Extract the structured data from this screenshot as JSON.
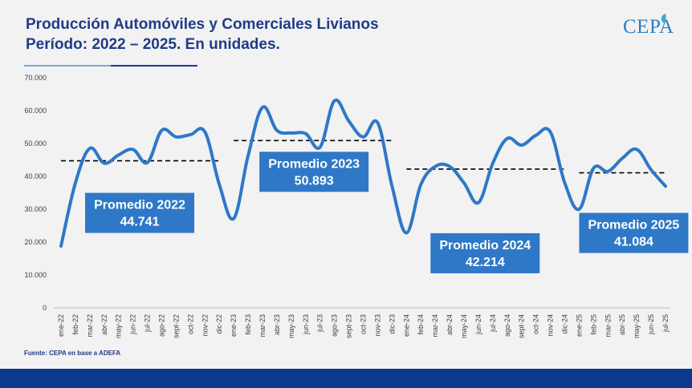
{
  "header": {
    "title_line1": "Producción Automóviles y Comerciales Livianos",
    "title_line2": "Período: 2022 – 2025. En unidades.",
    "logo_text": "CEPA"
  },
  "footer": {
    "source": "Fuente: CEPA en base a ADEFA"
  },
  "colors": {
    "line": "#2e78c7",
    "title": "#1f3b8a",
    "box": "#2e78c7",
    "band": "#0b3a8c"
  },
  "chart_data": {
    "type": "line",
    "title": "Producción Automóviles y Comerciales Livianos",
    "xlabel": "",
    "ylabel": "",
    "ylim": [
      0,
      70000
    ],
    "y_ticks": [
      0,
      10000,
      20000,
      30000,
      40000,
      50000,
      60000,
      70000
    ],
    "y_tick_labels": [
      "0",
      "10.000",
      "20.000",
      "30.000",
      "40.000",
      "50.000",
      "60.000",
      "70.000"
    ],
    "grid": false,
    "categories": [
      "ene-22",
      "feb-22",
      "mar-22",
      "abr-22",
      "may-22",
      "jun-22",
      "jul-22",
      "ago-22",
      "sept-22",
      "oct-22",
      "nov-22",
      "dic-22",
      "ene-23",
      "feb-23",
      "mar-23",
      "abr-23",
      "may-23",
      "jun-23",
      "jul-23",
      "ago-23",
      "sept-23",
      "oct-23",
      "nov-23",
      "dic-23",
      "ene-24",
      "feb-24",
      "mar-24",
      "abr-24",
      "may-24",
      "jun-24",
      "jul-24",
      "ago-24",
      "sept-24",
      "oct-24",
      "nov-24",
      "dic-24",
      "ene-25",
      "feb-25",
      "mar-25",
      "abr-25",
      "may-25",
      "jun-25",
      "jul-25"
    ],
    "series": [
      {
        "values": [
          18800,
          38000,
          48500,
          44000,
          46500,
          48200,
          44200,
          54000,
          52000,
          52700,
          53500,
          37500,
          27200,
          46300,
          61000,
          54000,
          53200,
          53000,
          48900,
          63000,
          56800,
          52000,
          56300,
          37000,
          22800,
          37500,
          43000,
          43000,
          38000,
          32000,
          44000,
          51500,
          49500,
          52500,
          53500,
          38000,
          30000,
          42500,
          41500,
          45500,
          48200,
          42000,
          37000
        ]
      }
    ],
    "averages": [
      {
        "label": "Promedio 2022",
        "value_text": "44.741",
        "value": 44741,
        "from": 0,
        "to": 11
      },
      {
        "label": "Promedio 2023",
        "value_text": "50.893",
        "value": 50893,
        "from": 12,
        "to": 23
      },
      {
        "label": "Promedio 2024",
        "value_text": "42.214",
        "value": 42214,
        "from": 24,
        "to": 35
      },
      {
        "label": "Promedio 2025",
        "value_text": "41.084",
        "value": 41084,
        "from": 36,
        "to": 42
      }
    ]
  }
}
